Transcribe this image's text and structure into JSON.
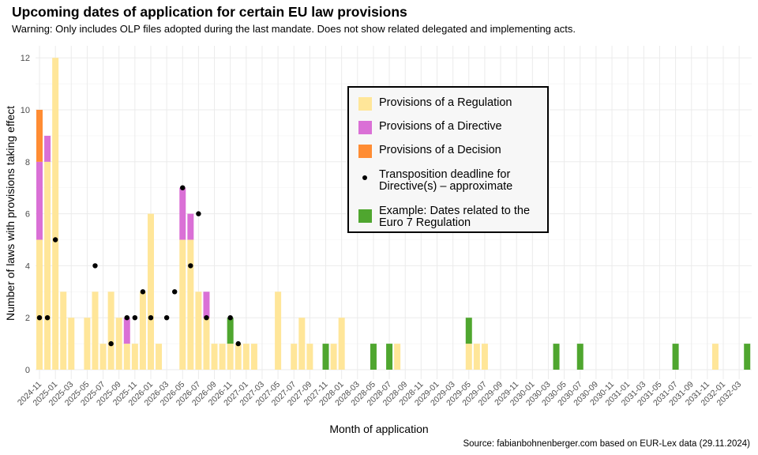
{
  "chart_data": {
    "type": "bar",
    "stacked": true,
    "title": "Upcoming dates of application for certain EU law provisions",
    "subtitle": "Warning: Only includes OLP files adopted during the last mandate. Does not show related delegated and implementing acts.",
    "caption": "Source: fabianbohnenberger.com based on EUR-Lex data (29.11.2024)",
    "xlabel": "Month of application",
    "ylabel": "Number of laws with provisions taking effect",
    "ylim": [
      0,
      12.5
    ],
    "y_ticks": [
      "0",
      "2",
      "4",
      "6",
      "8",
      "10",
      "12"
    ],
    "grid": true,
    "legend_position": "inside-top-center",
    "categories": [
      "2024-11",
      "2024-12",
      "2025-01",
      "2025-02",
      "2025-03",
      "2025-04",
      "2025-05",
      "2025-06",
      "2025-07",
      "2025-08",
      "2025-09",
      "2025-10",
      "2025-11",
      "2025-12",
      "2026-01",
      "2026-02",
      "2026-03",
      "2026-04",
      "2026-05",
      "2026-06",
      "2026-07",
      "2026-08",
      "2026-09",
      "2026-10",
      "2026-11",
      "2026-12",
      "2027-01",
      "2027-02",
      "2027-03",
      "2027-04",
      "2027-05",
      "2027-06",
      "2027-07",
      "2027-08",
      "2027-09",
      "2027-10",
      "2027-11",
      "2027-12",
      "2028-01",
      "2028-02",
      "2028-03",
      "2028-04",
      "2028-05",
      "2028-06",
      "2028-07",
      "2028-08",
      "2028-09",
      "2028-10",
      "2028-11",
      "2028-12",
      "2029-01",
      "2029-02",
      "2029-03",
      "2029-04",
      "2029-05",
      "2029-06",
      "2029-07",
      "2029-08",
      "2029-09",
      "2029-10",
      "2029-11",
      "2029-12",
      "2030-01",
      "2030-02",
      "2030-03",
      "2030-04",
      "2030-05",
      "2030-06",
      "2030-07",
      "2030-08",
      "2030-09",
      "2030-10",
      "2030-11",
      "2030-12",
      "2031-01",
      "2031-02",
      "2031-03",
      "2031-04",
      "2031-05",
      "2031-06",
      "2031-07",
      "2031-08",
      "2031-09",
      "2031-10",
      "2031-11",
      "2031-12",
      "2032-01",
      "2032-02",
      "2032-03",
      "2032-04"
    ],
    "x_ticks": [
      "2024-11",
      "2025-01",
      "2025-03",
      "2025-05",
      "2025-07",
      "2025-09",
      "2025-11",
      "2026-01",
      "2026-03",
      "2026-05",
      "2026-07",
      "2026-09",
      "2026-11",
      "2027-01",
      "2027-03",
      "2027-05",
      "2027-07",
      "2027-09",
      "2027-11",
      "2028-01",
      "2028-03",
      "2028-05",
      "2028-07",
      "2028-09",
      "2028-11",
      "2029-01",
      "2029-03",
      "2029-05",
      "2029-07",
      "2029-09",
      "2029-11",
      "2030-01",
      "2030-03",
      "2030-05",
      "2030-07",
      "2030-09",
      "2030-11",
      "2031-01",
      "2031-03",
      "2031-05",
      "2031-07",
      "2031-09",
      "2031-11",
      "2032-01",
      "2032-03"
    ],
    "series": [
      {
        "name": "Provisions of a Regulation",
        "color": "#FFE699",
        "values": [
          5,
          8,
          12,
          3,
          2,
          0,
          2,
          3,
          1,
          3,
          2,
          1,
          1,
          3,
          6,
          1,
          0,
          0,
          5,
          5,
          3,
          2,
          1,
          1,
          1,
          1,
          1,
          1,
          0,
          0,
          3,
          0,
          1,
          2,
          1,
          0,
          0,
          1,
          2,
          0,
          0,
          0,
          0,
          0,
          0,
          1,
          0,
          0,
          0,
          0,
          0,
          0,
          0,
          0,
          1,
          1,
          1,
          0,
          0,
          0,
          0,
          0,
          0,
          0,
          0,
          0,
          0,
          0,
          0,
          0,
          0,
          0,
          0,
          0,
          0,
          0,
          0,
          0,
          0,
          0,
          0,
          0,
          0,
          0,
          0,
          1,
          0,
          0,
          0,
          0
        ]
      },
      {
        "name": "Provisions of a Directive",
        "color": "#DA70D6",
        "values": [
          3,
          1,
          0,
          0,
          0,
          0,
          0,
          0,
          0,
          0,
          0,
          1,
          0,
          0,
          0,
          0,
          0,
          0,
          2,
          1,
          0,
          1,
          0,
          0,
          0,
          0,
          0,
          0,
          0,
          0,
          0,
          0,
          0,
          0,
          0,
          0,
          0,
          0,
          0,
          0,
          0,
          0,
          0,
          0,
          0,
          0,
          0,
          0,
          0,
          0,
          0,
          0,
          0,
          0,
          0,
          0,
          0,
          0,
          0,
          0,
          0,
          0,
          0,
          0,
          0,
          0,
          0,
          0,
          0,
          0,
          0,
          0,
          0,
          0,
          0,
          0,
          0,
          0,
          0,
          0,
          0,
          0,
          0,
          0,
          0,
          0,
          0,
          0,
          0,
          0
        ]
      },
      {
        "name": "Provisions of a Decision",
        "color": "#FF8C33",
        "values": [
          2,
          0,
          0,
          0,
          0,
          0,
          0,
          0,
          0,
          0,
          0,
          0,
          0,
          0,
          0,
          0,
          0,
          0,
          0,
          0,
          0,
          0,
          0,
          0,
          0,
          0,
          0,
          0,
          0,
          0,
          0,
          0,
          0,
          0,
          0,
          0,
          0,
          0,
          0,
          0,
          0,
          0,
          0,
          0,
          0,
          0,
          0,
          0,
          0,
          0,
          0,
          0,
          0,
          0,
          0,
          0,
          0,
          0,
          0,
          0,
          0,
          0,
          0,
          0,
          0,
          0,
          0,
          0,
          0,
          0,
          0,
          0,
          0,
          0,
          0,
          0,
          0,
          0,
          0,
          0,
          0,
          0,
          0,
          0,
          0,
          0,
          0,
          0,
          0,
          0
        ]
      },
      {
        "name": "Example: Dates related to the Euro 7 Regulation",
        "color": "#4FA62F",
        "values": [
          0,
          0,
          0,
          0,
          0,
          0,
          0,
          0,
          0,
          0,
          0,
          0,
          0,
          0,
          0,
          0,
          0,
          0,
          0,
          0,
          0,
          0,
          0,
          0,
          1,
          0,
          0,
          0,
          0,
          0,
          0,
          0,
          0,
          0,
          0,
          0,
          1,
          0,
          0,
          0,
          0,
          0,
          1,
          0,
          1,
          0,
          0,
          0,
          0,
          0,
          0,
          0,
          0,
          0,
          1,
          0,
          0,
          0,
          0,
          0,
          0,
          0,
          0,
          0,
          0,
          1,
          0,
          0,
          1,
          0,
          0,
          0,
          0,
          0,
          0,
          0,
          0,
          0,
          0,
          0,
          1,
          0,
          0,
          0,
          0,
          0,
          0,
          0,
          0,
          1
        ]
      }
    ],
    "points": {
      "name": "Transposition deadline for Directive(s) – approximate",
      "color": "#000000",
      "data": [
        [
          "2024-11",
          2
        ],
        [
          "2024-12",
          2
        ],
        [
          "2025-01",
          5
        ],
        [
          "2025-06",
          4
        ],
        [
          "2025-08",
          1
        ],
        [
          "2025-10",
          2
        ],
        [
          "2025-11",
          2
        ],
        [
          "2025-12",
          3
        ],
        [
          "2026-01",
          2
        ],
        [
          "2026-03",
          2
        ],
        [
          "2026-04",
          3
        ],
        [
          "2026-05",
          7
        ],
        [
          "2026-06",
          4
        ],
        [
          "2026-07",
          6
        ],
        [
          "2026-08",
          2
        ],
        [
          "2026-11",
          2
        ],
        [
          "2026-12",
          1
        ]
      ]
    }
  },
  "legend": {
    "items": [
      {
        "label": "Provisions of a Regulation"
      },
      {
        "label": "Provisions of a Directive"
      },
      {
        "label": "Provisions of a Decision"
      },
      {
        "label_line1": "Transposition deadline for",
        "label_line2": "Directive(s) – approximate"
      },
      {
        "label_line1": "Example: Dates related to the",
        "label_line2": "Euro 7 Regulation"
      }
    ]
  }
}
